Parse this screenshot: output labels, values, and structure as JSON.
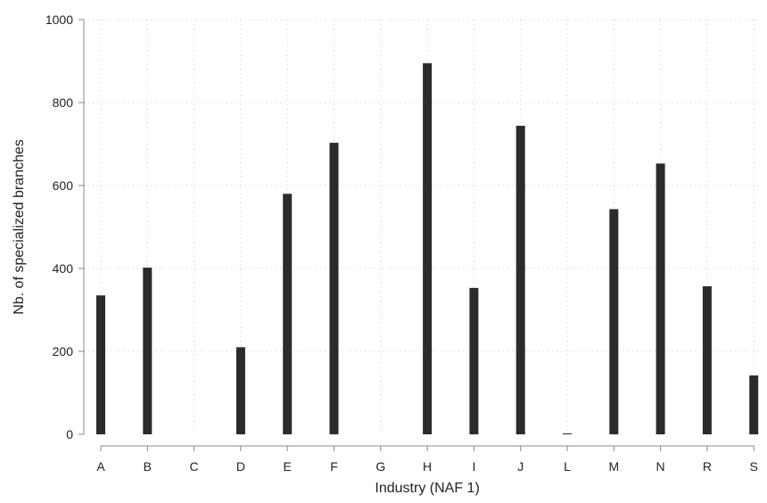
{
  "chart_data": {
    "type": "bar",
    "title": "",
    "xlabel": "Industry (NAF 1)",
    "ylabel": "Nb. of specialized branches",
    "categories": [
      "A",
      "B",
      "C",
      "D",
      "E",
      "F",
      "G",
      "H",
      "I",
      "J",
      "L",
      "M",
      "N",
      "R",
      "S"
    ],
    "values": [
      335,
      402,
      0,
      210,
      580,
      703,
      0,
      895,
      353,
      744,
      2,
      543,
      653,
      357,
      142
    ],
    "ylim": [
      0,
      1000
    ],
    "yticks": [
      0,
      200,
      400,
      600,
      800,
      1000
    ],
    "grid": true,
    "legend": "none",
    "colors": {
      "bar": "#2b2b2b",
      "grid": "#c8c8c8",
      "axis": "#888888"
    }
  }
}
